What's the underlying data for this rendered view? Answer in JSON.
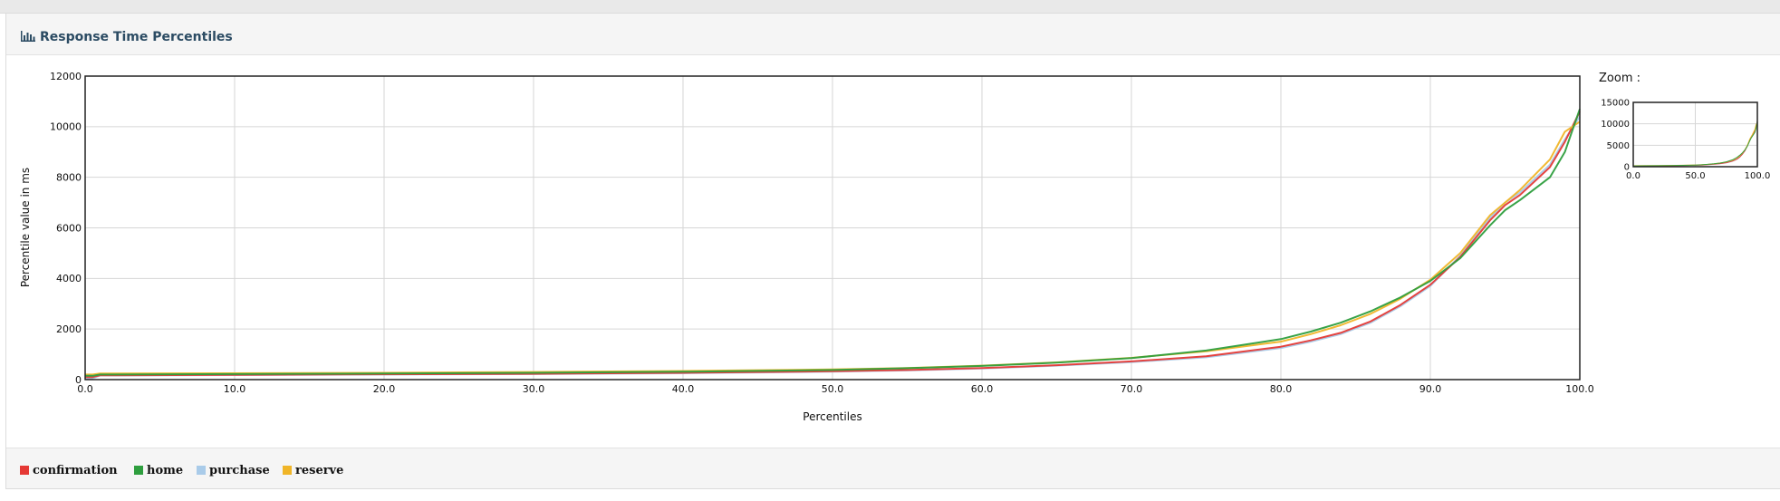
{
  "panel": {
    "title": "Response Time Percentiles",
    "icon": "bar-chart-icon"
  },
  "zoom": {
    "label": "Zoom :",
    "ylim": [
      0,
      15000
    ],
    "yticks": [
      0,
      5000,
      10000,
      15000
    ],
    "xlim": [
      0,
      100
    ],
    "xticks": [
      0,
      50,
      100
    ],
    "xtick_labels": [
      "0.0",
      "50.0",
      "100.0"
    ]
  },
  "colors": {
    "confirmation": "#e53935",
    "home": "#2e9e3e",
    "purchase": "#a9cbe9",
    "reserve": "#f0b528"
  },
  "chart_data": {
    "type": "line",
    "title": "",
    "xlabel": "Percentiles",
    "ylabel": "Percentile value in ms",
    "xlim": [
      0,
      100
    ],
    "ylim": [
      0,
      12000
    ],
    "xticks": [
      0,
      10,
      20,
      30,
      40,
      50,
      60,
      70,
      80,
      90,
      100
    ],
    "xtick_labels": [
      "0.0",
      "10.0",
      "20.0",
      "30.0",
      "40.0",
      "50.0",
      "60.0",
      "70.0",
      "80.0",
      "90.0",
      "100.0"
    ],
    "yticks": [
      0,
      2000,
      4000,
      6000,
      8000,
      10000,
      12000
    ],
    "grid": true,
    "legend_position": "bottom",
    "x": [
      0,
      0.5,
      1,
      10,
      20,
      30,
      40,
      50,
      55,
      60,
      65,
      70,
      75,
      80,
      82,
      84,
      86,
      88,
      90,
      92,
      94,
      95,
      96,
      98,
      99,
      100
    ],
    "series": [
      {
        "name": "confirmation",
        "values": [
          100,
          100,
          170,
          190,
          210,
          230,
          270,
          330,
          380,
          460,
          570,
          720,
          920,
          1300,
          1550,
          1850,
          2300,
          2950,
          3750,
          4850,
          6300,
          6900,
          7300,
          8400,
          9400,
          10600
        ]
      },
      {
        "name": "home",
        "values": [
          150,
          150,
          200,
          220,
          240,
          270,
          310,
          380,
          450,
          540,
          670,
          850,
          1150,
          1600,
          1900,
          2250,
          2700,
          3250,
          3900,
          4800,
          6100,
          6700,
          7100,
          8000,
          9000,
          10700
        ]
      },
      {
        "name": "purchase",
        "values": [
          50,
          50,
          160,
          180,
          200,
          220,
          250,
          310,
          360,
          440,
          550,
          690,
          880,
          1250,
          1500,
          1800,
          2250,
          2900,
          3700,
          4900,
          6400,
          7000,
          7400,
          8500,
          9500,
          10400
        ]
      },
      {
        "name": "reserve",
        "values": [
          200,
          200,
          240,
          250,
          270,
          300,
          340,
          400,
          460,
          550,
          680,
          860,
          1120,
          1500,
          1800,
          2150,
          2600,
          3200,
          3950,
          5000,
          6500,
          7000,
          7500,
          8700,
          9800,
          10200
        ]
      }
    ]
  }
}
